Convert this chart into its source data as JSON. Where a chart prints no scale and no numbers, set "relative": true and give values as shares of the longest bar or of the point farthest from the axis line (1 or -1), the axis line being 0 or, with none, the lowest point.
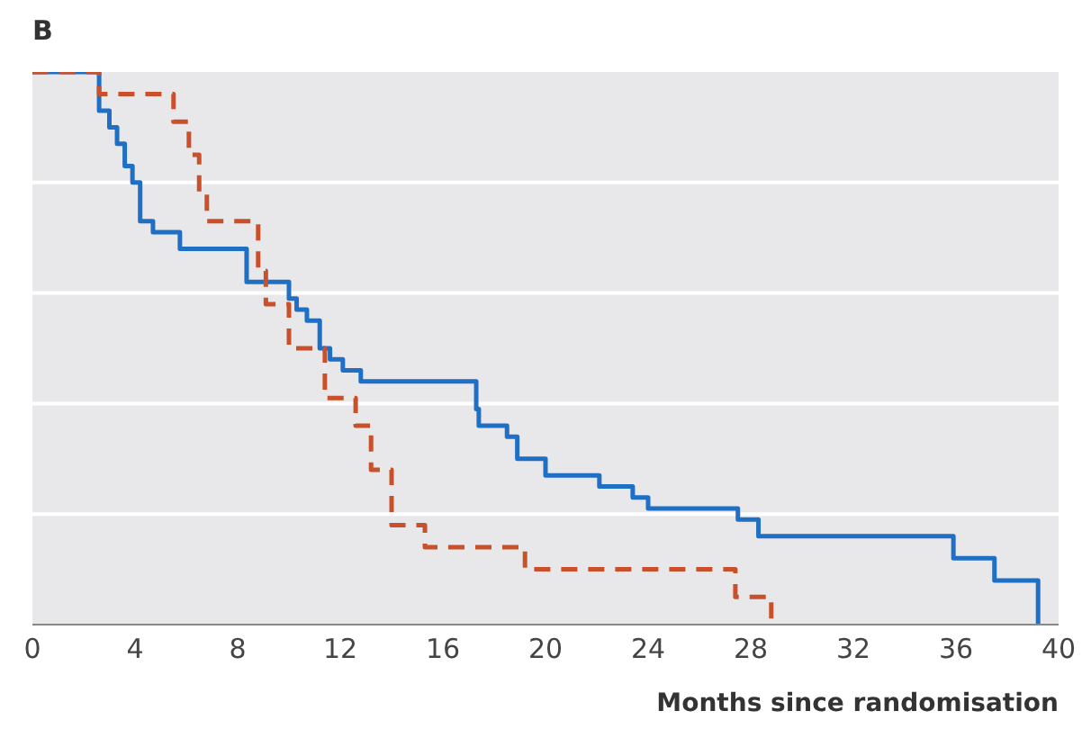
{
  "chart_data": {
    "type": "step",
    "title": "B",
    "xlabel": "Months since randomisation",
    "relative": true,
    "xlim": [
      0,
      40
    ],
    "xticks": [
      0,
      4,
      8,
      12,
      16,
      20,
      24,
      28,
      32,
      36,
      40
    ],
    "grid": "y",
    "marker": "none",
    "series": [
      {
        "color": "#1f6fc5",
        "line_style": "solid",
        "x": [
          0,
          2.6,
          3.0,
          3.3,
          3.6,
          3.9,
          4.2,
          4.7,
          5.75,
          8.35,
          10.0,
          10.3,
          10.7,
          11.2,
          11.6,
          12.1,
          12.8,
          17.3,
          17.4,
          18.5,
          18.9,
          20.0,
          22.1,
          23.4,
          24.0,
          27.5,
          28.3,
          35.9,
          37.5,
          39.2
        ],
        "values": [
          1,
          0.93,
          0.9,
          0.87,
          0.83,
          0.8,
          0.73,
          0.71,
          0.68,
          0.62,
          0.59,
          0.57,
          0.55,
          0.5,
          0.48,
          0.46,
          0.44,
          0.39,
          0.36,
          0.34,
          0.3,
          0.27,
          0.25,
          0.23,
          0.21,
          0.19,
          0.16,
          0.12,
          0.08,
          0
        ]
      },
      {
        "color": "#c8502a",
        "line_style": "dashed",
        "x": [
          0,
          2.6,
          5.5,
          6.1,
          6.5,
          6.8,
          8.8,
          9.1,
          10.0,
          11.4,
          12.6,
          13.2,
          14.0,
          15.3,
          19.2,
          27.4,
          28.8
        ],
        "values": [
          1,
          0.96,
          0.91,
          0.85,
          0.78,
          0.73,
          0.64,
          0.58,
          0.5,
          0.41,
          0.36,
          0.28,
          0.18,
          0.14,
          0.1,
          0.05,
          0
        ]
      }
    ]
  }
}
